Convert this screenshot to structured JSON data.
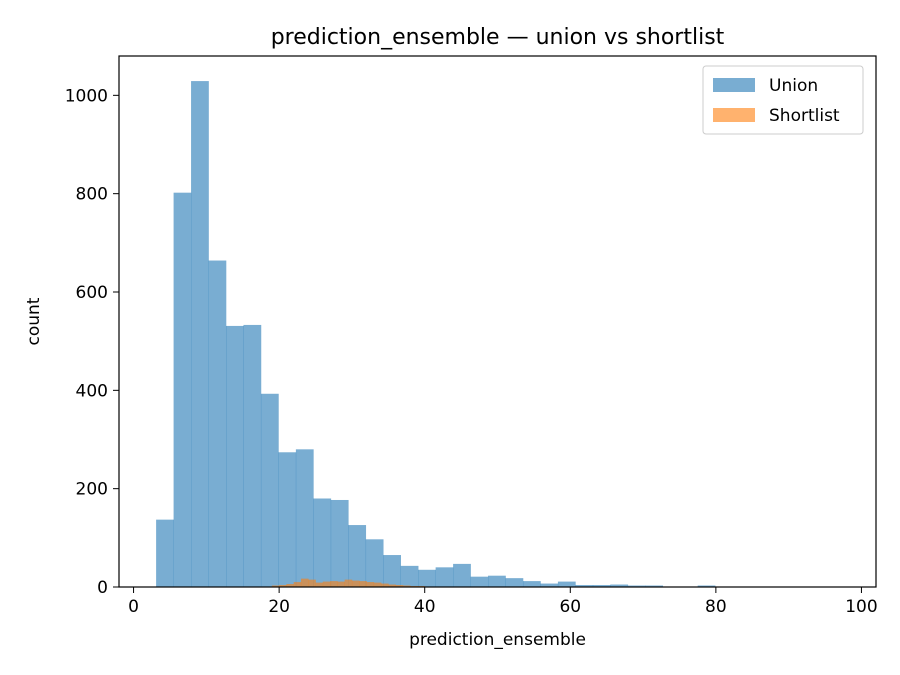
{
  "chart_data": {
    "type": "bar",
    "title": "prediction_ensemble — union vs shortlist",
    "xlabel": "prediction_ensemble",
    "ylabel": "count",
    "xlim": [
      -2,
      102
    ],
    "ylim": [
      0,
      1080
    ],
    "xticks": [
      0,
      20,
      40,
      60,
      80,
      100
    ],
    "yticks": [
      0,
      200,
      400,
      600,
      800,
      1000
    ],
    "grid": false,
    "legend_position": "top-right",
    "series": [
      {
        "name": "Union",
        "color": "#1f77b4",
        "opacity": 0.6,
        "bin_width": 2.4,
        "bin_starts": [
          3.1,
          5.5,
          7.9,
          10.3,
          12.7,
          15.1,
          17.5,
          19.9,
          22.3,
          24.7,
          27.1,
          29.5,
          31.9,
          34.3,
          36.7,
          39.1,
          41.5,
          43.9,
          46.3,
          48.7,
          51.1,
          53.5,
          55.9,
          58.3,
          60.7,
          63.1,
          65.5,
          67.9,
          70.3,
          72.7,
          75.1,
          77.5,
          79.9,
          82.3,
          84.7,
          87.1,
          89.5,
          91.9,
          94.3,
          96.7
        ],
        "values": [
          137,
          802,
          1029,
          664,
          531,
          533,
          393,
          274,
          280,
          180,
          177,
          126,
          97,
          65,
          43,
          35,
          40,
          47,
          21,
          23,
          18,
          12,
          7,
          11,
          4,
          4,
          5,
          3,
          3,
          1,
          1,
          3,
          1,
          1,
          1,
          0,
          0,
          0,
          0,
          1
        ]
      },
      {
        "name": "Shortlist",
        "color": "#ff7f0e",
        "opacity": 0.6,
        "bin_width": 1.0,
        "bin_starts": [
          19,
          20,
          21,
          22,
          23,
          24,
          25,
          26,
          27,
          28,
          29,
          30,
          31,
          32,
          33,
          34,
          35,
          36,
          37,
          38,
          39
        ],
        "values": [
          3,
          4,
          6,
          10,
          17,
          15,
          9,
          11,
          12,
          11,
          15,
          13,
          12,
          10,
          9,
          7,
          5,
          4,
          3,
          2,
          2
        ]
      }
    ]
  }
}
